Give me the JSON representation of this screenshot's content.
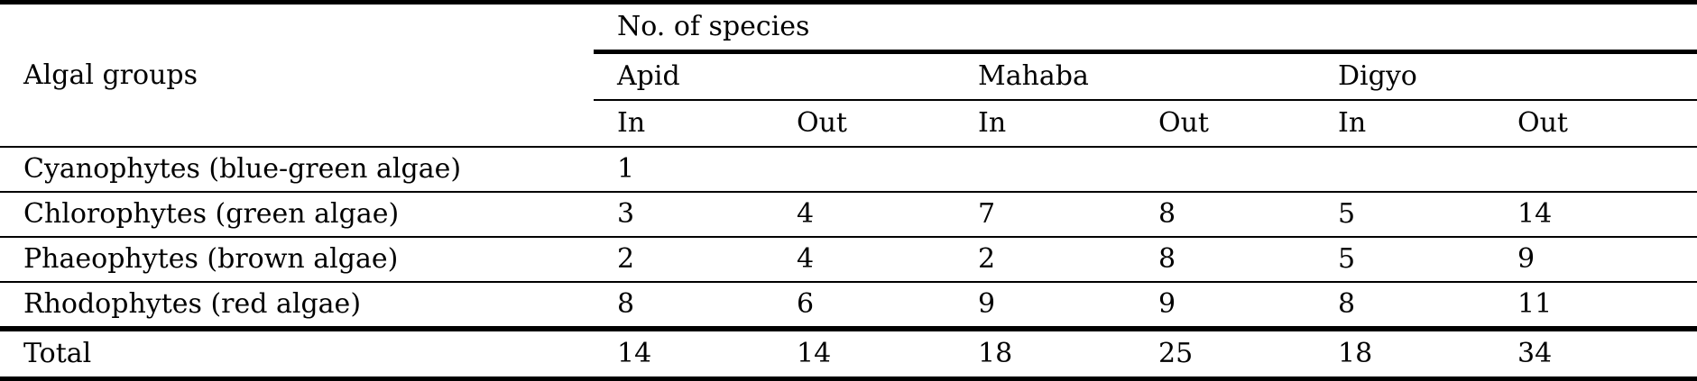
{
  "table": {
    "group_header": "Algal groups",
    "species_header": "No. of species",
    "sites": [
      "Apid",
      "Mahaba",
      "Digyo"
    ],
    "sub_headers": [
      "In",
      "Out",
      "In",
      "Out",
      "In",
      "Out"
    ],
    "rows": [
      {
        "group": "Cyanophytes (blue-green algae)",
        "values": [
          "1",
          "",
          "",
          "",
          "",
          ""
        ]
      },
      {
        "group": "Chlorophytes (green algae)",
        "values": [
          "3",
          "4",
          "7",
          "8",
          "5",
          "14"
        ]
      },
      {
        "group": "Phaeophytes (brown algae)",
        "values": [
          "2",
          "4",
          "2",
          "8",
          "5",
          "9"
        ]
      },
      {
        "group": "Rhodophytes (red algae)",
        "values": [
          "8",
          "6",
          "9",
          "9",
          "8",
          "11"
        ]
      }
    ],
    "total": {
      "group": "Total",
      "values": [
        "14",
        "14",
        "18",
        "25",
        "18",
        "34"
      ]
    }
  }
}
